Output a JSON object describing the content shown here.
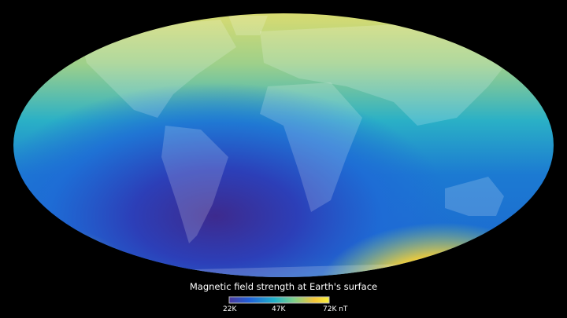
{
  "map": {
    "projection": "world-ellipse",
    "subject": "magnetic field strength",
    "colors": {
      "low": "#3b2a8c",
      "mid_low": "#1e5fd0",
      "mid": "#2ab5c8",
      "mid_high": "#8fd07a",
      "high": "#f5e83a",
      "peak": "#f7a72f"
    }
  },
  "legend": {
    "title": "Magnetic field strength at Earth's surface",
    "min_label": "22K",
    "mid_label": "47K",
    "max_label": "72K nT",
    "gradient": [
      "#4a3a9e",
      "#2160d8",
      "#1fb0c9",
      "#80d08a",
      "#f5c43a",
      "#f8f03a"
    ]
  }
}
